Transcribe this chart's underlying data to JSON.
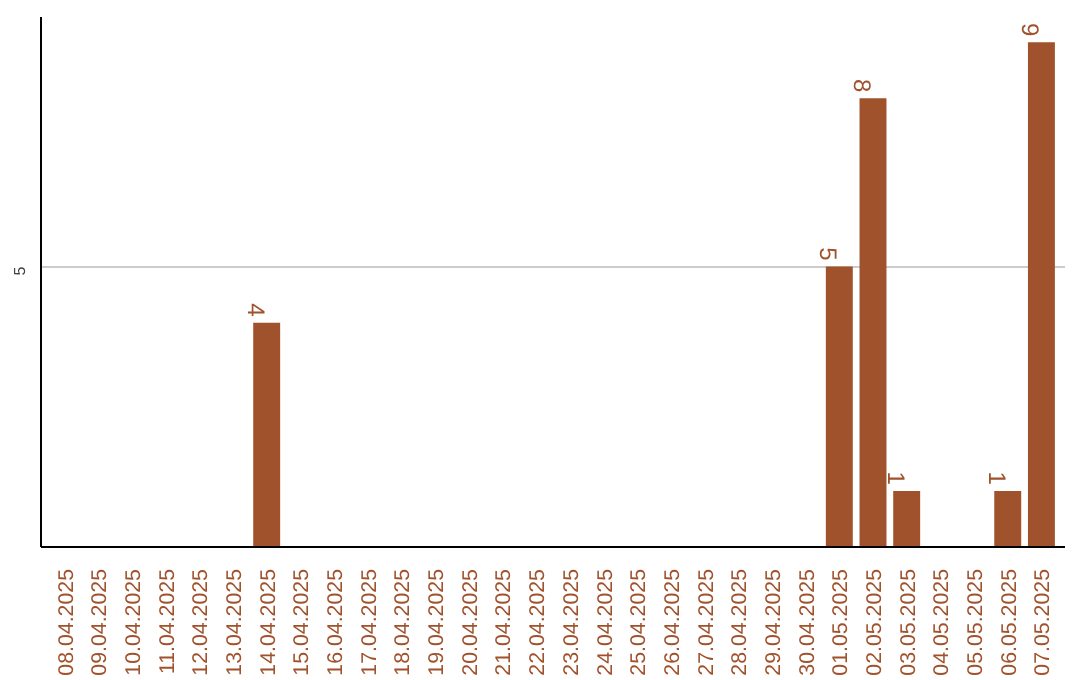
{
  "chart_data": {
    "type": "bar",
    "categories": [
      "08.04.2025",
      "09.04.2025",
      "10.04.2025",
      "11.04.2025",
      "12.04.2025",
      "13.04.2025",
      "14.04.2025",
      "15.04.2025",
      "16.04.2025",
      "17.04.2025",
      "18.04.2025",
      "19.04.2025",
      "20.04.2025",
      "21.04.2025",
      "22.04.2025",
      "23.04.2025",
      "24.04.2025",
      "25.04.2025",
      "26.04.2025",
      "27.04.2025",
      "28.04.2025",
      "29.04.2025",
      "30.04.2025",
      "01.05.2025",
      "02.05.2025",
      "03.05.2025",
      "04.05.2025",
      "05.05.2025",
      "06.05.2025",
      "07.05.2025"
    ],
    "values": [
      0,
      0,
      0,
      0,
      0,
      0,
      4,
      0,
      0,
      0,
      0,
      0,
      0,
      0,
      0,
      0,
      0,
      0,
      0,
      0,
      0,
      0,
      0,
      5,
      8,
      1,
      0,
      0,
      1,
      9
    ],
    "value_labels": [
      null,
      null,
      null,
      null,
      null,
      null,
      "4",
      null,
      null,
      null,
      null,
      null,
      null,
      null,
      null,
      null,
      null,
      null,
      null,
      null,
      null,
      null,
      null,
      "5",
      "8",
      "1",
      null,
      null,
      "1",
      "9"
    ],
    "color": "#a0522d",
    "ylim": [
      0,
      9.45
    ],
    "yticks": [
      5
    ],
    "grid": "y"
  }
}
